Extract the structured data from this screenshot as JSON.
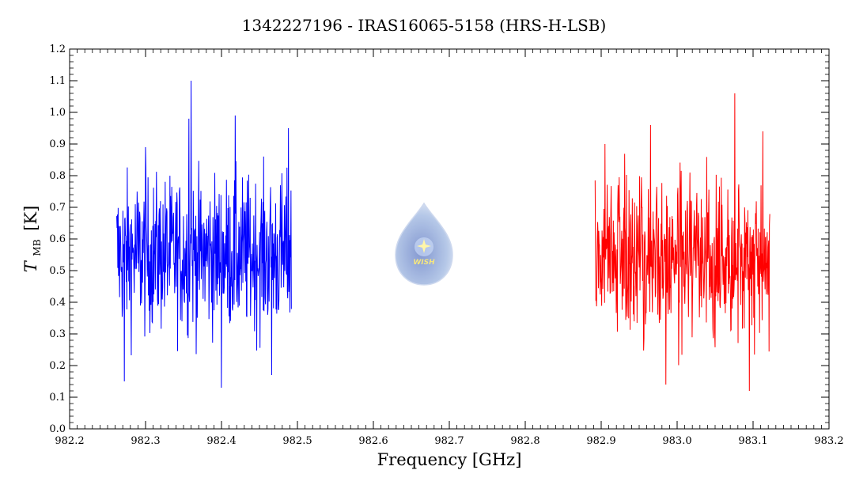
{
  "chart_data": {
    "type": "line",
    "title": "1342227196 - IRAS16065-5158 (HRS-H-LSB)",
    "xlabel": "Frequency [GHz]",
    "ylabel_main": "T",
    "ylabel_sub": "MB",
    "ylabel_unit": "[K]",
    "xlim": [
      982.2,
      983.2
    ],
    "ylim": [
      0.0,
      1.2
    ],
    "xticks": [
      "982.2",
      "982.3",
      "982.4",
      "982.5",
      "982.6",
      "982.7",
      "982.8",
      "982.9",
      "983.0",
      "983.1",
      "983.2"
    ],
    "yticks": [
      "0.0",
      "0.1",
      "0.2",
      "0.3",
      "0.4",
      "0.5",
      "0.6",
      "0.7",
      "0.8",
      "0.9",
      "1.0",
      "1.1",
      "1.2"
    ],
    "series": [
      {
        "color": "#0000ff",
        "x_start": 982.262,
        "x_end": 982.492,
        "points": 480,
        "baseline": 0.55,
        "spikes": [
          {
            "x": 982.272,
            "y": 0.15
          },
          {
            "x": 982.3,
            "y": 0.89
          },
          {
            "x": 982.36,
            "y": 1.1
          },
          {
            "x": 982.357,
            "y": 0.98
          },
          {
            "x": 982.4,
            "y": 0.13
          },
          {
            "x": 982.418,
            "y": 0.99
          },
          {
            "x": 982.488,
            "y": 0.95
          },
          {
            "x": 982.466,
            "y": 0.17
          }
        ]
      },
      {
        "color": "#ff0000",
        "x_start": 982.892,
        "x_end": 983.122,
        "points": 480,
        "baseline": 0.55,
        "spikes": [
          {
            "x": 982.905,
            "y": 0.9
          },
          {
            "x": 982.965,
            "y": 0.96
          },
          {
            "x": 982.985,
            "y": 0.14
          },
          {
            "x": 983.076,
            "y": 1.06
          },
          {
            "x": 983.095,
            "y": 0.12
          },
          {
            "x": 983.113,
            "y": 0.94
          }
        ]
      }
    ],
    "grid": false
  },
  "watermark": {
    "text": "WISH",
    "fill_color": "#a9bfe4",
    "star_color": "#fff59a",
    "text_color": "#f4e26a"
  }
}
